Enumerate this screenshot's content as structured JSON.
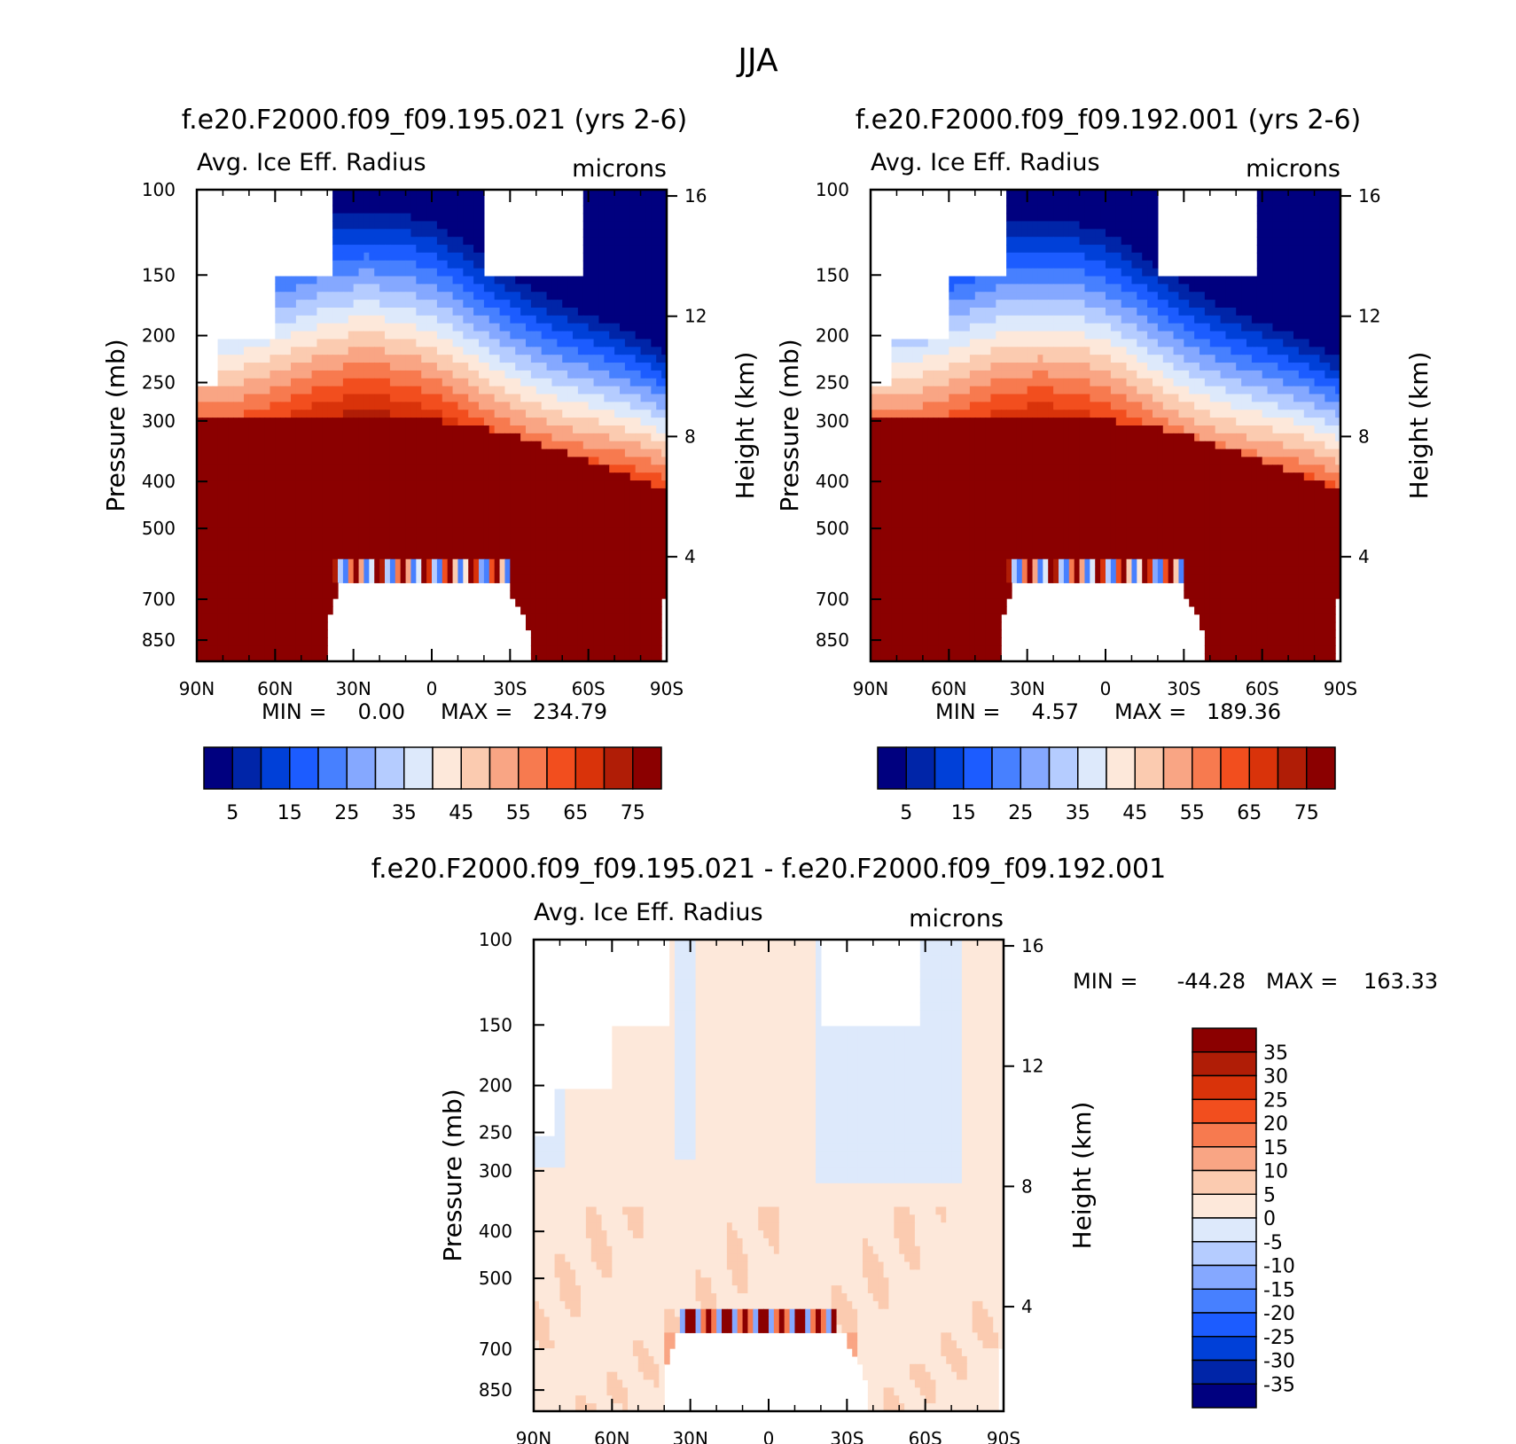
{
  "figure_title": "JJA",
  "colors": {
    "abs": [
      "#00007f",
      "#0025a8",
      "#0040d8",
      "#1c5cff",
      "#4780ff",
      "#85a8ff",
      "#b5ccff",
      "#dde9fb",
      "#fde8da",
      "#fbcbb0",
      "#f9a584",
      "#f77a4f",
      "#f24e1e",
      "#d9330a",
      "#b01d06",
      "#8b0000"
    ],
    "diff": [
      "#00007f",
      "#0025a8",
      "#0040d8",
      "#1c5cff",
      "#4780ff",
      "#85a8ff",
      "#b5ccff",
      "#dde9fb",
      "#fde8da",
      "#fbcbb0",
      "#f9a584",
      "#f77a4f",
      "#f24e1e",
      "#d9330a",
      "#b01d06",
      "#8b0000"
    ]
  },
  "chart_data": [
    {
      "type": "heatmap",
      "title": "f.e20.F2000.f09_f09.195.021 (yrs 2-6)",
      "subtitle_left": "Avg. Ice Eff. Radius",
      "subtitle_right": "microns",
      "ylabel": "Pressure (mb)",
      "ylabel_right": "Height (km)",
      "y_ticks": [
        "100",
        "150",
        "200",
        "250",
        "300",
        "400",
        "500",
        "700",
        "850"
      ],
      "y_right_ticks": [
        "16",
        "12",
        "8",
        "4"
      ],
      "x_ticks": [
        "90N",
        "60N",
        "30N",
        "0",
        "30S",
        "60S",
        "90S"
      ],
      "min_label": "MIN =",
      "min_value": "0.00",
      "max_label": "MAX =",
      "max_value": "234.79",
      "colorbar_labels": [
        "5",
        "15",
        "25",
        "35",
        "45",
        "55",
        "65",
        "75"
      ],
      "colorbar_levels": [
        0,
        5,
        10,
        15,
        20,
        25,
        30,
        35,
        40,
        45,
        50,
        55,
        60,
        65,
        70,
        75,
        80
      ]
    },
    {
      "type": "heatmap",
      "title": "f.e20.F2000.f09_f09.192.001 (yrs 2-6)",
      "subtitle_left": "Avg. Ice Eff. Radius",
      "subtitle_right": "microns",
      "ylabel": "Pressure (mb)",
      "ylabel_right": "Height (km)",
      "y_ticks": [
        "100",
        "150",
        "200",
        "250",
        "300",
        "400",
        "500",
        "700",
        "850"
      ],
      "y_right_ticks": [
        "16",
        "12",
        "8",
        "4"
      ],
      "x_ticks": [
        "90N",
        "60N",
        "30N",
        "0",
        "30S",
        "60S",
        "90S"
      ],
      "min_label": "MIN =",
      "min_value": "4.57",
      "max_label": "MAX =",
      "max_value": "189.36",
      "colorbar_labels": [
        "5",
        "15",
        "25",
        "35",
        "45",
        "55",
        "65",
        "75"
      ],
      "colorbar_levels": [
        0,
        5,
        10,
        15,
        20,
        25,
        30,
        35,
        40,
        45,
        50,
        55,
        60,
        65,
        70,
        75,
        80
      ]
    },
    {
      "type": "heatmap",
      "title": "f.e20.F2000.f09_f09.195.021 - f.e20.F2000.f09_f09.192.001",
      "subtitle_left": "Avg. Ice Eff. Radius",
      "subtitle_right": "microns",
      "ylabel": "Pressure (mb)",
      "ylabel_right": "Height (km)",
      "y_ticks": [
        "100",
        "150",
        "200",
        "250",
        "300",
        "400",
        "500",
        "700",
        "850"
      ],
      "y_right_ticks": [
        "16",
        "12",
        "8",
        "4"
      ],
      "x_ticks": [
        "90N",
        "60N",
        "30N",
        "0",
        "30S",
        "60S",
        "90S"
      ],
      "min_label": "MIN =",
      "min_value": "-44.28",
      "max_label": "MAX =",
      "max_value": "163.33",
      "colorbar_labels": [
        "35",
        "30",
        "25",
        "20",
        "15",
        "10",
        "5",
        "0",
        "-5",
        "-10",
        "-15",
        "-20",
        "-25",
        "-30",
        "-35"
      ],
      "colorbar_levels": [
        -40,
        -35,
        -30,
        -25,
        -20,
        -15,
        -10,
        -5,
        0,
        5,
        10,
        15,
        20,
        25,
        30,
        35,
        40
      ]
    }
  ]
}
